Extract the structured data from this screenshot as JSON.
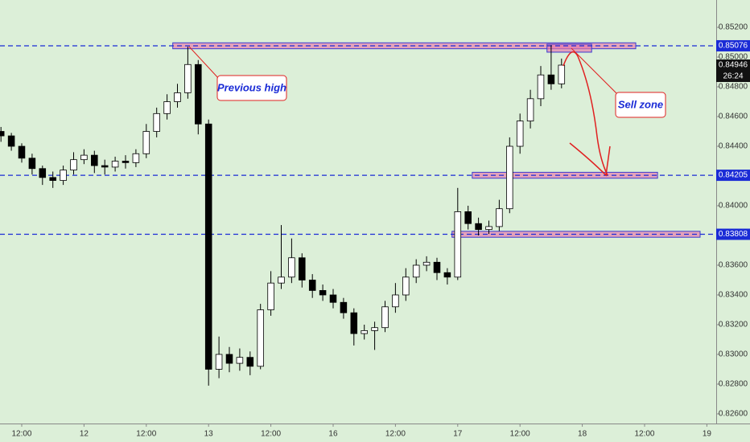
{
  "chart_data": {
    "type": "candlestick",
    "x": [
      -4,
      -2,
      0,
      2,
      4,
      6,
      8,
      10,
      12,
      14,
      16,
      18,
      20,
      22,
      24,
      26,
      28,
      30,
      32,
      34,
      36,
      38,
      40,
      42,
      44,
      46,
      48,
      50,
      52,
      54,
      56,
      58,
      60,
      62,
      64,
      66,
      68,
      70,
      72,
      74,
      76,
      78,
      80,
      82,
      84,
      86,
      88,
      90,
      92,
      94,
      96,
      98,
      100,
      102,
      104
    ],
    "open": [
      0.845,
      0.8447,
      0.844,
      0.8432,
      0.8425,
      0.8419,
      0.8417,
      0.8424,
      0.8431,
      0.8434,
      0.8427,
      0.8426,
      0.843,
      0.8429,
      0.8435,
      0.845,
      0.8462,
      0.847,
      0.8476,
      0.8495,
      0.8455,
      0.829,
      0.83,
      0.8294,
      0.8298,
      0.8292,
      0.833,
      0.8348,
      0.8352,
      0.8365,
      0.835,
      0.8343,
      0.834,
      0.8335,
      0.8328,
      0.8314,
      0.8316,
      0.8318,
      0.8332,
      0.834,
      0.8352,
      0.836,
      0.8362,
      0.8355,
      0.8352,
      0.8396,
      0.8388,
      0.8384,
      0.8386,
      0.8398,
      0.844,
      0.8457,
      0.8472,
      0.8488,
      0.8482
    ],
    "high": [
      0.8453,
      0.8449,
      0.8442,
      0.8435,
      0.8427,
      0.8423,
      0.8427,
      0.8436,
      0.8438,
      0.8437,
      0.8431,
      0.8433,
      0.8434,
      0.8438,
      0.8455,
      0.8466,
      0.8475,
      0.8482,
      0.8507,
      0.8498,
      0.8458,
      0.8312,
      0.8305,
      0.8304,
      0.8302,
      0.8334,
      0.8356,
      0.8387,
      0.8378,
      0.8368,
      0.8354,
      0.8347,
      0.8344,
      0.8338,
      0.8331,
      0.832,
      0.8322,
      0.8336,
      0.8348,
      0.8358,
      0.8364,
      0.8366,
      0.8365,
      0.8358,
      0.8412,
      0.84,
      0.8392,
      0.839,
      0.8404,
      0.8446,
      0.8462,
      0.8478,
      0.8494,
      0.8508,
      0.8499
    ],
    "low": [
      0.8443,
      0.8437,
      0.8429,
      0.8421,
      0.8414,
      0.8412,
      0.8414,
      0.8421,
      0.8428,
      0.8422,
      0.8421,
      0.8423,
      0.8425,
      0.8426,
      0.8432,
      0.8446,
      0.8458,
      0.8466,
      0.8472,
      0.8448,
      0.8279,
      0.8284,
      0.8288,
      0.8289,
      0.8286,
      0.829,
      0.8326,
      0.8344,
      0.8348,
      0.8345,
      0.8338,
      0.8336,
      0.8331,
      0.8324,
      0.8306,
      0.831,
      0.8303,
      0.8315,
      0.8328,
      0.8336,
      0.8348,
      0.8356,
      0.835,
      0.8347,
      0.835,
      0.8384,
      0.838,
      0.8381,
      0.8383,
      0.8395,
      0.8435,
      0.8452,
      0.8467,
      0.8478,
      0.8479
    ],
    "close": [
      0.8447,
      0.844,
      0.8432,
      0.8425,
      0.8419,
      0.8417,
      0.8424,
      0.8431,
      0.8434,
      0.8427,
      0.8426,
      0.843,
      0.8429,
      0.8435,
      0.845,
      0.8462,
      0.847,
      0.8476,
      0.8495,
      0.8455,
      0.829,
      0.83,
      0.8294,
      0.8298,
      0.8292,
      0.833,
      0.8348,
      0.8352,
      0.8365,
      0.835,
      0.8343,
      0.834,
      0.8335,
      0.8328,
      0.8314,
      0.8316,
      0.8318,
      0.8332,
      0.834,
      0.8352,
      0.836,
      0.8362,
      0.8355,
      0.8352,
      0.8396,
      0.8388,
      0.8384,
      0.8386,
      0.8398,
      0.844,
      0.8457,
      0.8472,
      0.8488,
      0.8482,
      0.84946
    ],
    "up_color": "#ffffff",
    "down_color": "#000000",
    "xlim": [
      -4.186,
      133.8
    ],
    "ylim": [
      0.82535,
      0.85384
    ],
    "xticks": [
      {
        "value": 0,
        "label": "12:00"
      },
      {
        "value": 12,
        "label": "12"
      },
      {
        "value": 24,
        "label": "12:00"
      },
      {
        "value": 36,
        "label": "13"
      },
      {
        "value": 48,
        "label": "12:00"
      },
      {
        "value": 60,
        "label": "16"
      },
      {
        "value": 72,
        "label": "12:00"
      },
      {
        "value": 84,
        "label": "17"
      },
      {
        "value": 96,
        "label": "12:00"
      },
      {
        "value": 108,
        "label": "18"
      },
      {
        "value": 120,
        "label": "12:00"
      },
      {
        "value": 132,
        "label": "19"
      }
    ],
    "yticks": [
      {
        "value": 0.826,
        "label": "0.82600"
      },
      {
        "value": 0.828,
        "label": "0.82800"
      },
      {
        "value": 0.83,
        "label": "0.83000"
      },
      {
        "value": 0.832,
        "label": "0.83200"
      },
      {
        "value": 0.834,
        "label": "0.83400"
      },
      {
        "value": 0.836,
        "label": "0.83600"
      },
      {
        "value": 0.838,
        "label": "0.83800"
      },
      {
        "value": 0.84,
        "label": "0.84000"
      },
      {
        "value": 0.842,
        "label": "0.84200"
      },
      {
        "value": 0.844,
        "label": "0.84400"
      },
      {
        "value": 0.846,
        "label": "0.84600"
      },
      {
        "value": 0.848,
        "label": "0.84800"
      },
      {
        "value": 0.85,
        "label": "0.85000"
      },
      {
        "value": 0.852,
        "label": "0.85200"
      }
    ],
    "grid": false,
    "levels": [
      {
        "value": 0.85076,
        "color": "#1a2bd6"
      },
      {
        "value": 0.84205,
        "color": "#1a2bd6"
      },
      {
        "value": 0.83808,
        "color": "#1a2bd6"
      }
    ],
    "zones": [
      {
        "x": [
          29.1,
          118.3
        ],
        "range": [
          0.85056,
          0.85096
        ]
      },
      {
        "x": [
          101.2,
          109.8
        ],
        "range": [
          0.85033,
          0.85087
        ]
      },
      {
        "x": [
          86.8,
          122.5
        ],
        "range": [
          0.84185,
          0.84225
        ]
      },
      {
        "x": [
          82.9,
          130.7
        ],
        "range": [
          0.83788,
          0.83828
        ]
      }
    ],
    "current_price": {
      "value": 0.84946,
      "countdown": "26:24"
    },
    "annotations": [
      "Previous high",
      "Sell zone"
    ]
  }
}
